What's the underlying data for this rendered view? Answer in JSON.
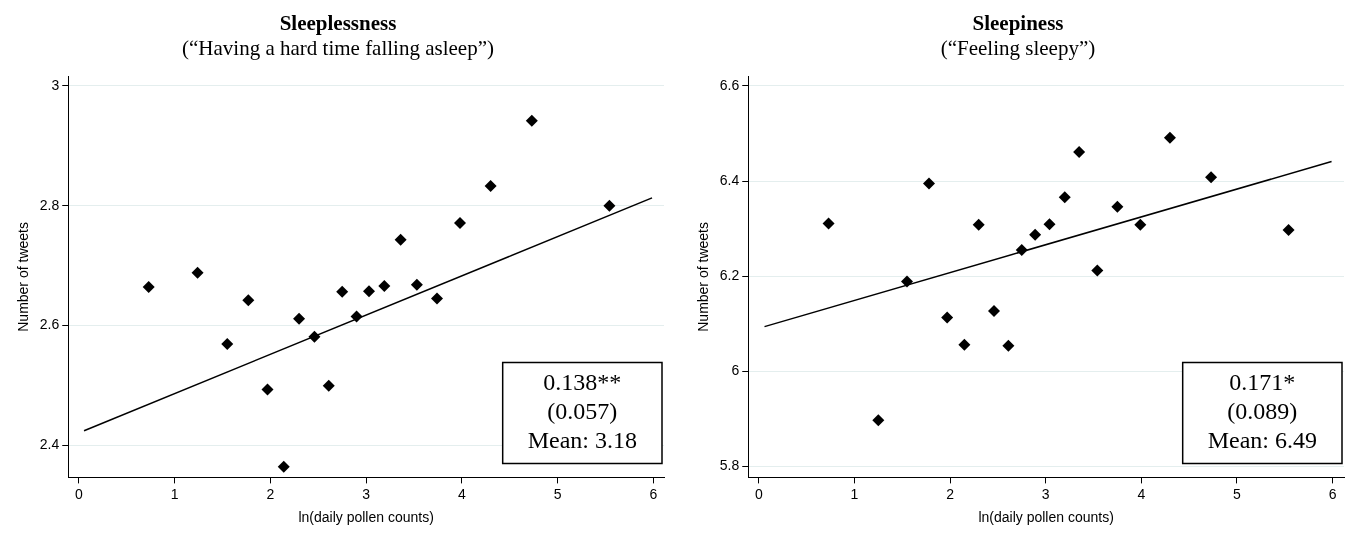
{
  "chart_data": [
    {
      "type": "scatter",
      "title": "Sleeplessness",
      "subtitle": "(“Having a hard time falling asleep”)",
      "xlabel": "ln(daily pollen counts)",
      "ylabel": "Number of tweets",
      "series": [
        {
          "type": "scatter",
          "color": "#000000",
          "marker": "diamond",
          "x": [
            0.73,
            1.24,
            1.55,
            1.77,
            1.97,
            2.14,
            2.3,
            2.46,
            2.61,
            2.75,
            2.9,
            3.03,
            3.19,
            3.36,
            3.53,
            3.74,
            3.98,
            4.3,
            4.73,
            5.54
          ],
          "values": [
            2.664,
            2.688,
            2.569,
            2.642,
            2.493,
            2.364,
            2.611,
            2.581,
            2.499,
            2.656,
            2.615,
            2.657,
            2.666,
            2.743,
            2.668,
            2.645,
            2.771,
            2.833,
            2.942,
            2.8
          ]
        },
        {
          "type": "line",
          "color": "#000000",
          "marker": "none",
          "x": [
            0.055,
            5.985
          ],
          "values": [
            2.424,
            2.813
          ]
        }
      ],
      "xlim": [
        -0.11,
        6.11
      ],
      "xticks": [
        0,
        1,
        2,
        3,
        4,
        5,
        6
      ],
      "ylim": [
        2.346,
        3.016
      ],
      "yticks": [
        2.4,
        2.6,
        2.8,
        3
      ],
      "grid": "y",
      "legend": false,
      "annotations": [
        "0.138**",
        "(0.057)",
        "Mean: 3.18"
      ]
    },
    {
      "type": "scatter",
      "title": "Sleepiness",
      "subtitle": "(“Feeling sleepy”)",
      "xlabel": "ln(daily pollen counts)",
      "ylabel": "Number of tweets",
      "series": [
        {
          "type": "scatter",
          "color": "#000000",
          "marker": "diamond",
          "x": [
            0.73,
            1.25,
            1.55,
            1.78,
            1.97,
            2.15,
            2.3,
            2.46,
            2.61,
            2.75,
            2.89,
            3.04,
            3.2,
            3.35,
            3.54,
            3.75,
            3.99,
            4.3,
            4.73,
            5.54
          ],
          "values": [
            6.311,
            5.897,
            6.189,
            6.395,
            6.113,
            6.056,
            6.308,
            6.127,
            6.054,
            6.255,
            6.287,
            6.309,
            6.366,
            6.461,
            6.212,
            6.346,
            6.308,
            6.491,
            6.408,
            6.297
          ]
        },
        {
          "type": "line",
          "color": "#000000",
          "marker": "none",
          "x": [
            0.06,
            5.99
          ],
          "values": [
            6.094,
            6.441
          ]
        }
      ],
      "xlim": [
        -0.11,
        6.12
      ],
      "xticks": [
        0,
        1,
        2,
        3,
        4,
        5,
        6
      ],
      "ylim": [
        5.777,
        6.62
      ],
      "yticks": [
        5.8,
        6,
        6.2,
        6.4,
        6.6
      ],
      "grid": "y",
      "legend": false,
      "annotations": [
        "0.171*",
        "(0.089)",
        "Mean: 6.49"
      ]
    }
  ]
}
